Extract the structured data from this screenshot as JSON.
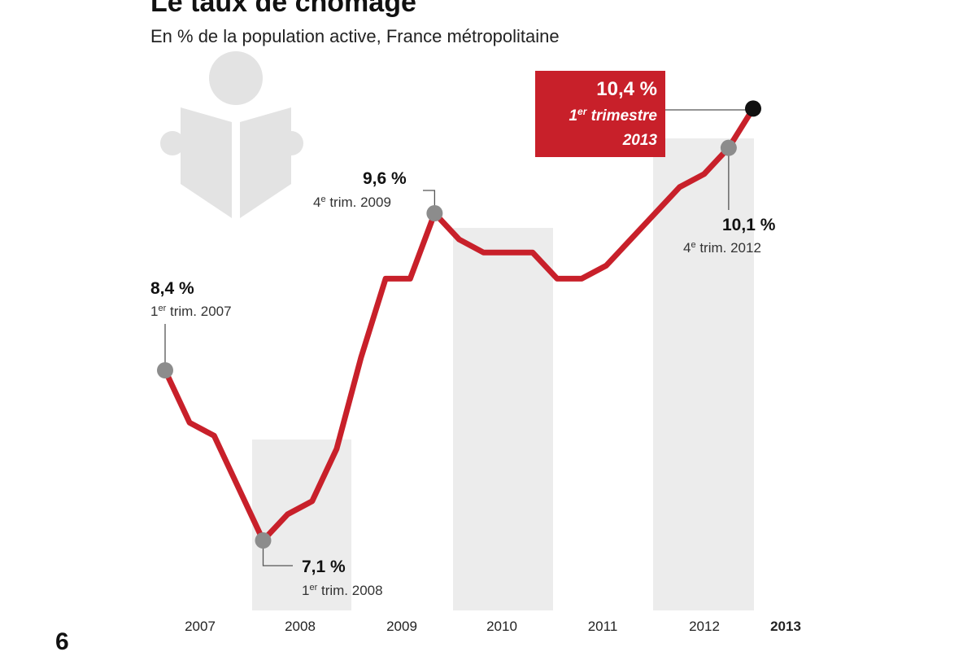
{
  "header": {
    "title": "Le taux de chômage",
    "subtitle": "En % de la population active, France métropolitaine",
    "page_number": "6"
  },
  "colors": {
    "line": "#c8202a",
    "band": "#ececec",
    "point": "#8c8c8c",
    "last_point": "#111111",
    "callout_bg": "#c8202a",
    "icon": "#e3e3e3"
  },
  "icon": "person-reading-newspaper-icon",
  "annotations": {
    "start": {
      "value": "8,4 %",
      "sup": "er",
      "pre": "1",
      "post": " trim. 2007"
    },
    "low": {
      "value": "7,1 %",
      "sup": "er",
      "pre": "1",
      "post": " trim. 2008"
    },
    "peak2009": {
      "value": "9,6 %",
      "sup": "e",
      "pre": "4",
      "post": " trim. 2009"
    },
    "q4_2012": {
      "value": "10,1 %",
      "sup": "e",
      "pre": "4",
      "post": " trim. 2012"
    },
    "last": {
      "value": "10,4 %",
      "sup": "er",
      "pre": "1",
      "post": " trimestre",
      "year": "2013"
    }
  },
  "chart_data": {
    "type": "line",
    "title": "Le taux de chômage",
    "subtitle": "En % de la population active, France métropolitaine",
    "unit": "%",
    "x_axis_labels": [
      "2007",
      "2008",
      "2009",
      "2010",
      "2011",
      "2012",
      "2013"
    ],
    "shaded_years": [
      "2008",
      "2010",
      "2012"
    ],
    "grid": false,
    "series": [
      {
        "x": [
          "T1 2007",
          "T2 2007",
          "T3 2007",
          "T4 2007",
          "T1 2008",
          "T2 2008",
          "T3 2008",
          "T4 2008",
          "T1 2009",
          "T2 2009",
          "T3 2009",
          "T4 2009",
          "T1 2010",
          "T2 2010",
          "T3 2010",
          "T4 2010",
          "T1 2011",
          "T2 2011",
          "T3 2011",
          "T4 2011",
          "T1 2012",
          "T2 2012",
          "T3 2012",
          "T4 2012",
          "T1 2013"
        ],
        "values": [
          8.4,
          8.0,
          7.9,
          7.5,
          7.1,
          7.3,
          7.4,
          7.8,
          8.5,
          9.1,
          9.1,
          9.6,
          9.4,
          9.3,
          9.3,
          9.3,
          9.1,
          9.1,
          9.2,
          9.4,
          9.6,
          9.8,
          9.9,
          10.1,
          10.4
        ]
      }
    ]
  }
}
